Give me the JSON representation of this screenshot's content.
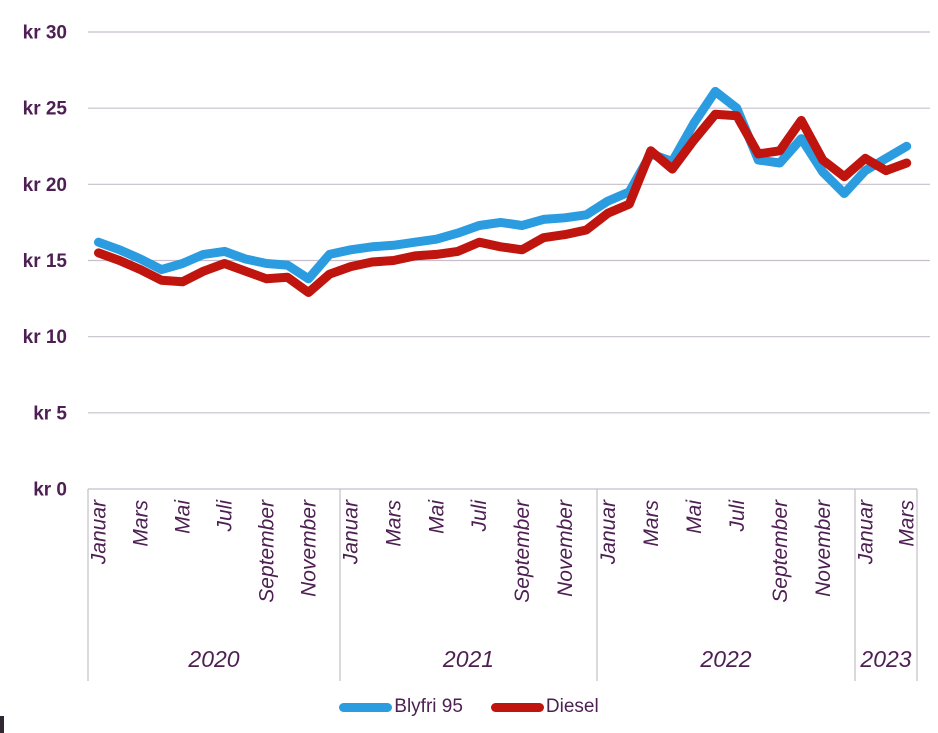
{
  "chart_data": {
    "type": "line",
    "title": "",
    "text_color": "#4D1F52",
    "grid_color": "#C6BFCB",
    "frame_color": "#C3BDC7",
    "y_axis": {
      "unit": "kr",
      "min": 0,
      "max": 30,
      "grid": true,
      "tick_values": [
        0,
        5,
        10,
        15,
        20,
        25,
        30
      ],
      "tick_labels": [
        "kr 0",
        "kr 5",
        "kr 10",
        "kr 15",
        "kr 20",
        "kr 25",
        "kr 30"
      ]
    },
    "x_axis": {
      "year_groups": [
        {
          "label": "2020",
          "month_count": 12,
          "visible_month_labels": [
            "Januar",
            "Mars",
            "Mai",
            "Juli",
            "September",
            "November"
          ]
        },
        {
          "label": "2021",
          "month_count": 12,
          "visible_month_labels": [
            "Januar",
            "Mars",
            "Mai",
            "Juli",
            "September",
            "November"
          ]
        },
        {
          "label": "2022",
          "month_count": 12,
          "visible_month_labels": [
            "Januar",
            "Mars",
            "Mai",
            "Juli",
            "September",
            "November"
          ]
        },
        {
          "label": "2023",
          "month_count": 3,
          "visible_month_labels": [
            "Januar",
            "Mars"
          ]
        }
      ]
    },
    "series": [
      {
        "name": "Blyfri 95",
        "color": "#2B9CE0",
        "values": [
          16.2,
          15.7,
          15.1,
          14.4,
          14.8,
          15.4,
          15.6,
          15.1,
          14.8,
          14.7,
          13.8,
          15.4,
          15.7,
          15.9,
          16.0,
          16.2,
          16.4,
          16.8,
          17.3,
          17.5,
          17.3,
          17.7,
          17.8,
          18.0,
          18.9,
          19.5,
          22.0,
          21.5,
          24.0,
          26.1,
          25.0,
          21.6,
          21.4,
          23.0,
          20.8,
          19.4,
          20.9,
          21.7,
          22.5
        ]
      },
      {
        "name": "Diesel",
        "color": "#C0140E",
        "values": [
          15.5,
          15.0,
          14.4,
          13.7,
          13.6,
          14.3,
          14.8,
          14.3,
          13.8,
          13.9,
          12.9,
          14.1,
          14.6,
          14.9,
          15.0,
          15.3,
          15.4,
          15.6,
          16.2,
          15.9,
          15.7,
          16.5,
          16.7,
          17.0,
          18.1,
          18.7,
          22.2,
          21.0,
          22.9,
          24.6,
          24.5,
          22.0,
          22.2,
          24.2,
          21.6,
          20.5,
          21.7,
          20.9,
          21.4
        ]
      }
    ],
    "legend": {
      "position": "bottom",
      "items": [
        "Blyfri 95",
        "Diesel"
      ]
    }
  }
}
